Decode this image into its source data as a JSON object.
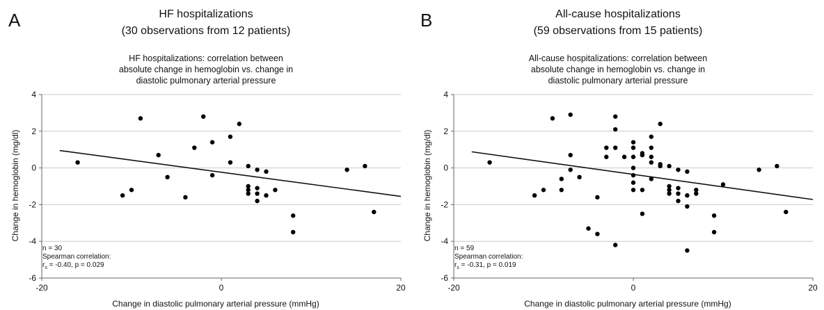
{
  "panels": [
    {
      "letter": "A",
      "heading_line1": "HF hospitalizations",
      "heading_line2": "(30 observations from 12 patients)",
      "title_line1": "HF hospitalizations: correlation between",
      "title_line2": "absolute change in hemoglobin vs. change in",
      "title_line3": "diastolic pulmonary arterial pressure",
      "stats_n": "n = 30",
      "stats_label": "Spearman correlation:",
      "stats_r_prefix": "r",
      "stats_r_sub": "s",
      "stats_r_value": " = -0.40, p = 0.029"
    },
    {
      "letter": "B",
      "heading_line1": "All-cause hospitalizations",
      "heading_line2": "(59 observations from 15 patients)",
      "title_line1": "All-cause hospitalizations: correlation between",
      "title_line2": "absolute change in hemoglobin vs. change in",
      "title_line3": "diastolic pulmonary arterial pressure",
      "stats_n": "n = 59",
      "stats_label": "Spearman correlation:",
      "stats_r_prefix": "r",
      "stats_r_sub": "s",
      "stats_r_value": " = -0.31, p = 0.019"
    }
  ],
  "chart_data": [
    {
      "type": "scatter",
      "title": "HF hospitalizations: correlation between absolute change in hemoglobin vs. change in diastolic pulmonary arterial pressure",
      "xlabel": "Change in diastolic pulmonary arterial pressure (mmHg)",
      "ylabel": "Change in hemoglobin (mg/dl)",
      "xlim": [
        -20,
        20
      ],
      "ylim": [
        -6,
        4
      ],
      "xticks": [
        -20,
        0,
        20
      ],
      "yticks": [
        -6,
        -4,
        -2,
        0,
        2,
        4
      ],
      "grid": "horizontal",
      "points": [
        [
          -16,
          0.3
        ],
        [
          -11,
          -1.5
        ],
        [
          -10,
          -1.2
        ],
        [
          -9,
          2.7
        ],
        [
          -7,
          0.7
        ],
        [
          -6,
          -0.5
        ],
        [
          -4,
          -1.6
        ],
        [
          -3,
          1.1
        ],
        [
          -2,
          2.8
        ],
        [
          -1,
          1.4
        ],
        [
          -1,
          -0.4
        ],
        [
          1,
          1.7
        ],
        [
          1,
          0.3
        ],
        [
          2,
          2.4
        ],
        [
          3,
          0.1
        ],
        [
          3,
          -1.0
        ],
        [
          3,
          -1.2
        ],
        [
          3,
          -1.4
        ],
        [
          4,
          -0.1
        ],
        [
          4,
          -1.1
        ],
        [
          4,
          -1.4
        ],
        [
          4,
          -1.8
        ],
        [
          5,
          -0.2
        ],
        [
          5,
          -1.5
        ],
        [
          6,
          -1.2
        ],
        [
          8,
          -2.6
        ],
        [
          8,
          -3.5
        ],
        [
          14,
          -0.1
        ],
        [
          16,
          0.1
        ],
        [
          17,
          -2.4
        ]
      ],
      "trendline": {
        "x": [
          -18,
          20
        ],
        "y": [
          0.95,
          -1.55
        ]
      }
    },
    {
      "type": "scatter",
      "title": "All-cause hospitalizations: correlation between absolute change in hemoglobin vs. change in diastolic pulmonary arterial pressure",
      "xlabel": "Change in diastolic pulmonary arterial pressure (mmHg)",
      "ylabel": "Change in hemoglobin (mg/dl)",
      "xlim": [
        -20,
        20
      ],
      "ylim": [
        -6,
        4
      ],
      "xticks": [
        -20,
        0,
        20
      ],
      "yticks": [
        -6,
        -4,
        -2,
        0,
        2,
        4
      ],
      "grid": "horizontal",
      "points": [
        [
          -16,
          0.3
        ],
        [
          -11,
          -1.5
        ],
        [
          -10,
          -1.2
        ],
        [
          -9,
          2.7
        ],
        [
          -8,
          -0.6
        ],
        [
          -7,
          2.9
        ],
        [
          -7,
          0.7
        ],
        [
          -7,
          -0.1
        ],
        [
          -6,
          -0.5
        ],
        [
          -5,
          -3.3
        ],
        [
          -4,
          -1.6
        ],
        [
          -4,
          -3.6
        ],
        [
          -3,
          1.1
        ],
        [
          -3,
          0.6
        ],
        [
          -2,
          2.8
        ],
        [
          -2,
          2.1
        ],
        [
          -2,
          1.1
        ],
        [
          -2,
          -4.2
        ],
        [
          -1,
          0.6
        ],
        [
          0,
          1.4
        ],
        [
          0,
          1.1
        ],
        [
          0,
          0.6
        ],
        [
          0,
          0.0
        ],
        [
          0,
          -0.4
        ],
        [
          0,
          -0.8
        ],
        [
          0,
          -1.2
        ],
        [
          1,
          0.8
        ],
        [
          1,
          0.7
        ],
        [
          1,
          -1.2
        ],
        [
          1,
          -2.5
        ],
        [
          2,
          1.7
        ],
        [
          2,
          1.1
        ],
        [
          2,
          0.6
        ],
        [
          2,
          0.3
        ],
        [
          2,
          -0.6
        ],
        [
          3,
          2.4
        ],
        [
          3,
          0.2
        ],
        [
          3,
          0.1
        ],
        [
          4,
          0.1
        ],
        [
          4,
          -1.0
        ],
        [
          4,
          -1.2
        ],
        [
          4,
          -1.4
        ],
        [
          5,
          -0.1
        ],
        [
          5,
          -1.1
        ],
        [
          5,
          -1.4
        ],
        [
          5,
          -1.8
        ],
        [
          6,
          -0.2
        ],
        [
          6,
          -1.5
        ],
        [
          6,
          -2.1
        ],
        [
          6,
          -4.5
        ],
        [
          7,
          -1.2
        ],
        [
          7,
          -1.4
        ],
        [
          9,
          -2.6
        ],
        [
          9,
          -3.5
        ],
        [
          10,
          -0.9
        ],
        [
          14,
          -0.1
        ],
        [
          16,
          0.1
        ],
        [
          17,
          -2.4
        ],
        [
          -8,
          -1.2
        ]
      ],
      "trendline": {
        "x": [
          -18,
          20
        ],
        "y": [
          0.88,
          -1.72
        ]
      }
    }
  ]
}
